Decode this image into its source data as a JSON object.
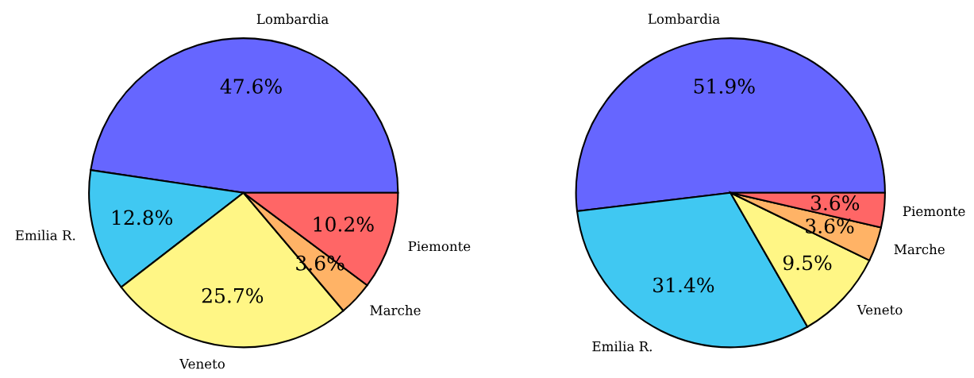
{
  "chart_data": [
    {
      "type": "pie",
      "categories": [
        "Lombardia",
        "Emilia R.",
        "Veneto",
        "Marche",
        "Piemonte"
      ],
      "values": [
        47.6,
        12.8,
        25.7,
        3.6,
        10.2
      ],
      "colors": [
        "#6666ff",
        "#40c8f2",
        "#fff685",
        "#ffb366",
        "#ff6666"
      ],
      "value_labels": [
        "47.6%",
        "12.8%",
        "25.7%",
        "3.6%",
        "10.2%"
      ]
    },
    {
      "type": "pie",
      "categories": [
        "Lombardia",
        "Emilia R.",
        "Veneto",
        "Marche",
        "Piemonte"
      ],
      "values": [
        51.9,
        31.4,
        9.5,
        3.6,
        3.6
      ],
      "colors": [
        "#6666ff",
        "#40c8f2",
        "#fff685",
        "#ffb366",
        "#ff6666"
      ],
      "value_labels": [
        "51.9%",
        "31.4%",
        "9.5%",
        "3.6%",
        "3.6%"
      ]
    }
  ]
}
